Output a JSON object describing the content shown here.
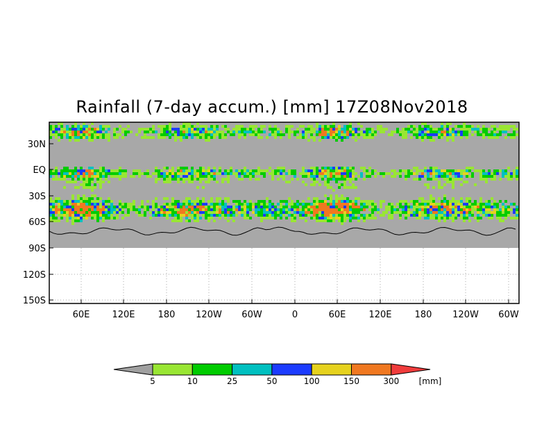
{
  "title": "Rainfall (7-day accum.) [mm] 17Z08Nov2018",
  "map": {
    "lat_ticks": [
      "30N",
      "EQ",
      "30S",
      "60S",
      "90S",
      "120S",
      "150S"
    ],
    "lon_ticks": [
      "60E",
      "120E",
      "180",
      "120W",
      "60W",
      "0",
      "60E",
      "120E",
      "180",
      "120W",
      "60W"
    ],
    "data_colors": {
      "no_rain": "#a8a8a8",
      "light": "#99e633",
      "green": "#00cc00",
      "cyan": "#00c0c0",
      "blue": "#1c3cff",
      "yellow": "#e6d21e",
      "orange": "#f07820"
    }
  },
  "colorbar": {
    "colors": [
      "#a0a0a0",
      "#99e633",
      "#00cc00",
      "#00c0c0",
      "#1c3cff",
      "#e6d21e",
      "#f07820",
      "#f03c3c"
    ],
    "labels": [
      "5",
      "10",
      "25",
      "50",
      "100",
      "150",
      "300"
    ],
    "unit": "[mm]"
  }
}
